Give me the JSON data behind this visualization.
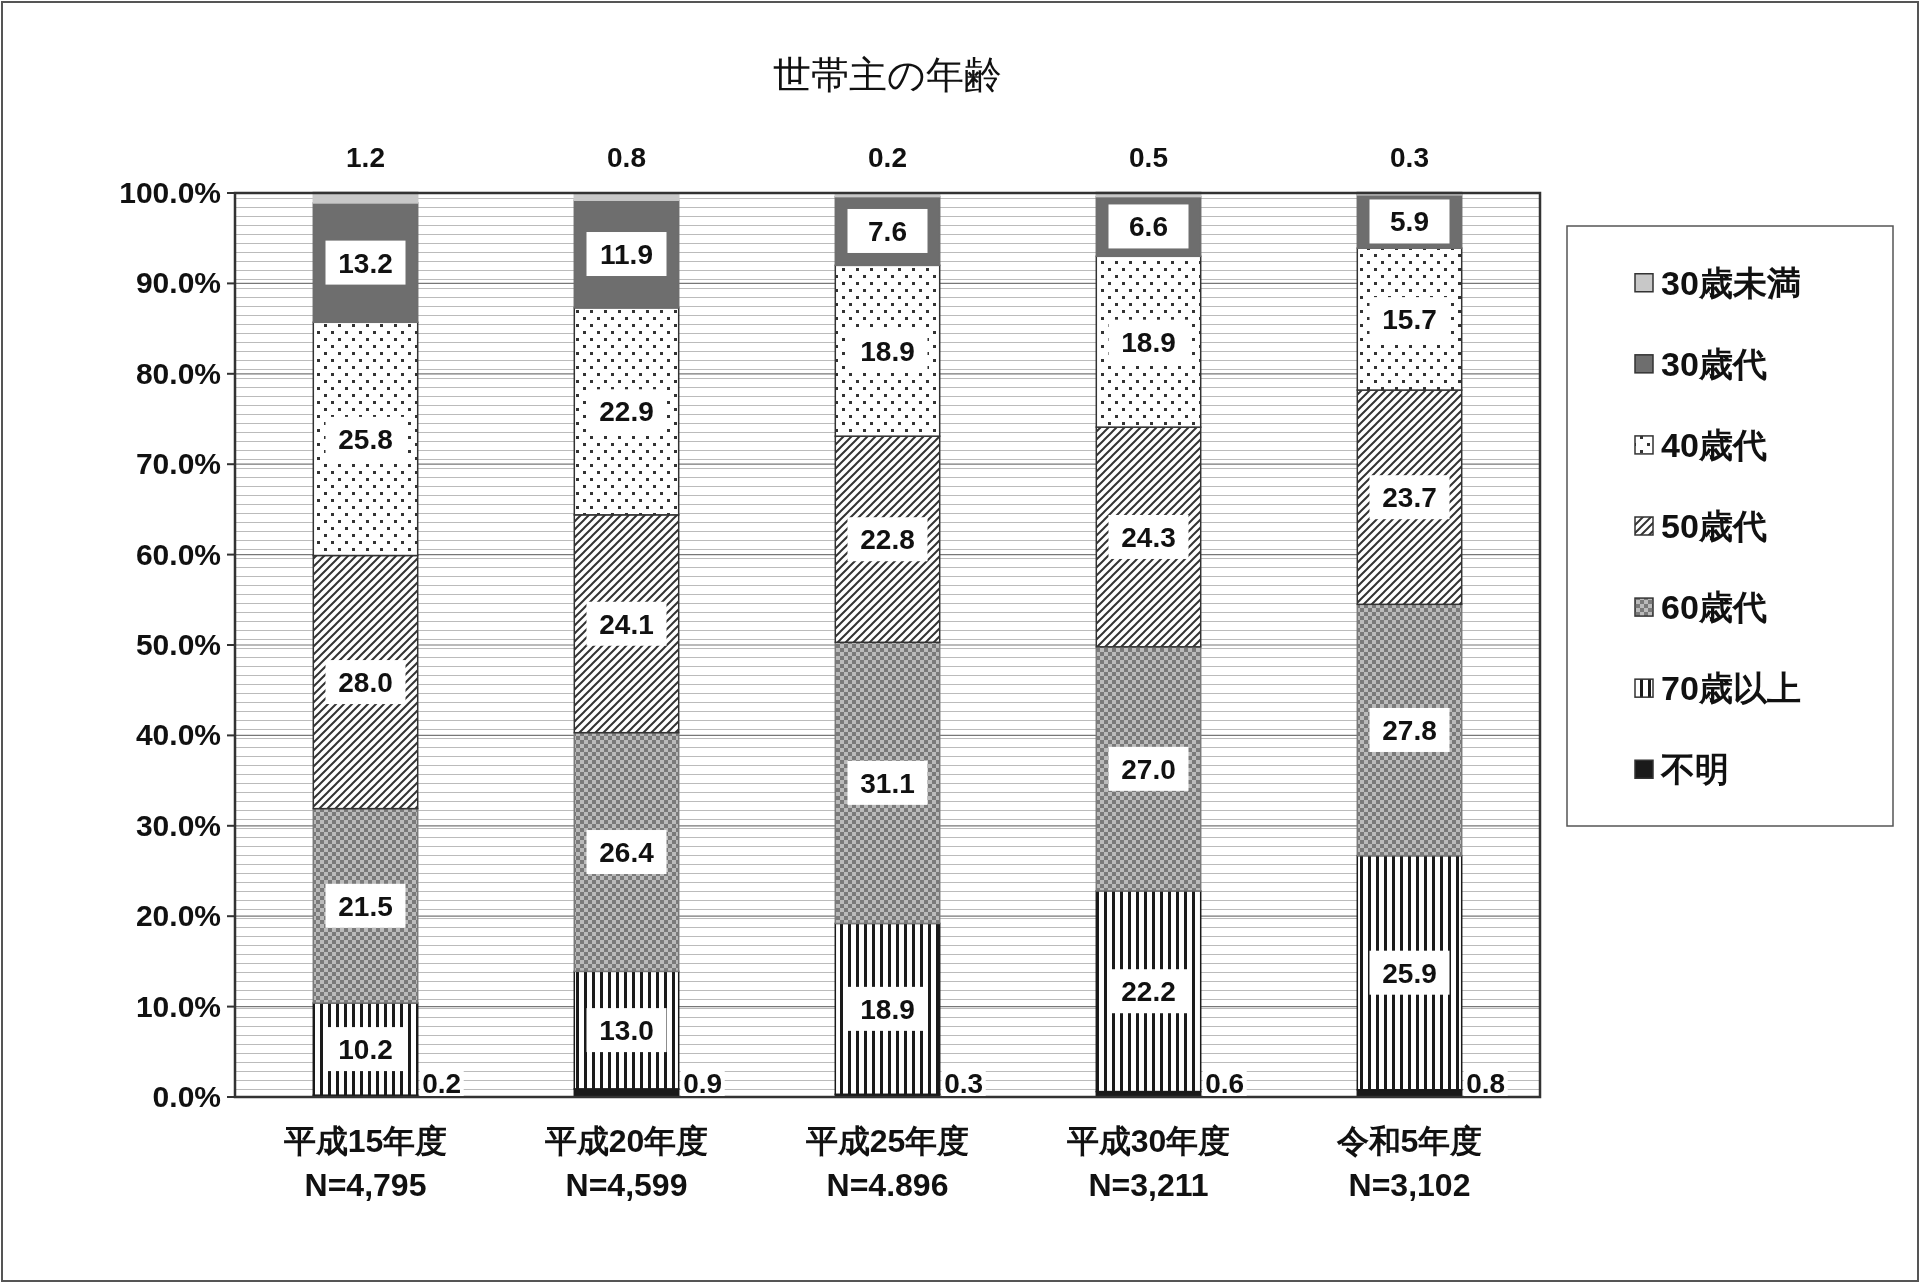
{
  "chart_data": {
    "type": "bar",
    "stacked": true,
    "title": "世帯主の年齢",
    "categories": [
      "平成15年度\nN=4,795",
      "平成20年度\nN=4,599",
      "平成25年度\nN=4.896",
      "平成30年度\nN=3,211",
      "令和5年度\nN=3,102"
    ],
    "series": [
      {
        "name": "不明",
        "color": "#1a1a1a",
        "values": [
          0.2,
          0.9,
          0.3,
          0.6,
          0.8
        ],
        "value_labels": [
          "0.2",
          "0.9",
          "0.3",
          "0.6",
          "0.8"
        ]
      },
      {
        "name": "70歳以上",
        "color": "#1a1a1a",
        "values": [
          10.2,
          13.0,
          18.9,
          22.2,
          25.9
        ],
        "value_labels": [
          "10.2",
          "13.0",
          "18.9",
          "22.2",
          "25.9"
        ]
      },
      {
        "name": "60歳代",
        "color": "#7a7a7a",
        "values": [
          21.5,
          26.4,
          31.1,
          27.0,
          27.8
        ],
        "value_labels": [
          "21.5",
          "26.4",
          "31.1",
          "27.0",
          "27.8"
        ]
      },
      {
        "name": "50歳代",
        "color": "#333333",
        "values": [
          28.0,
          24.1,
          22.8,
          24.3,
          23.7
        ],
        "value_labels": [
          "28.0",
          "24.1",
          "22.8",
          "24.3",
          "23.7"
        ]
      },
      {
        "name": "40歳代",
        "color": "#333333",
        "values": [
          25.8,
          22.9,
          18.9,
          18.9,
          15.7
        ],
        "value_labels": [
          "25.8",
          "22.9",
          "18.9",
          "18.9",
          "15.7"
        ]
      },
      {
        "name": "30歳代",
        "color": "#6e6e6e",
        "values": [
          13.2,
          11.9,
          7.6,
          6.6,
          5.9
        ],
        "value_labels": [
          "13.2",
          "11.9",
          "7.6",
          "6.6",
          "5.9"
        ]
      },
      {
        "name": "30歳未満",
        "color": "#c8c8c8",
        "values": [
          1.2,
          0.8,
          0.2,
          0.5,
          0.3
        ],
        "value_labels": [
          "1.2",
          "0.8",
          "0.2",
          "0.5",
          "0.3"
        ]
      }
    ],
    "ylim": [
      0,
      100
    ],
    "yticks": [
      {
        "value": 0,
        "label": "0.0%"
      },
      {
        "value": 10,
        "label": "10.0%"
      },
      {
        "value": 20,
        "label": "20.0%"
      },
      {
        "value": 30,
        "label": "30.0%"
      },
      {
        "value": 40,
        "label": "40.0%"
      },
      {
        "value": 50,
        "label": "50.0%"
      },
      {
        "value": 60,
        "label": "60.0%"
      },
      {
        "value": 70,
        "label": "70.0%"
      },
      {
        "value": 80,
        "label": "80.0%"
      },
      {
        "value": 90,
        "label": "90.0%"
      },
      {
        "value": 100,
        "label": "100.0%"
      }
    ],
    "grid": "y",
    "legend": "right"
  }
}
